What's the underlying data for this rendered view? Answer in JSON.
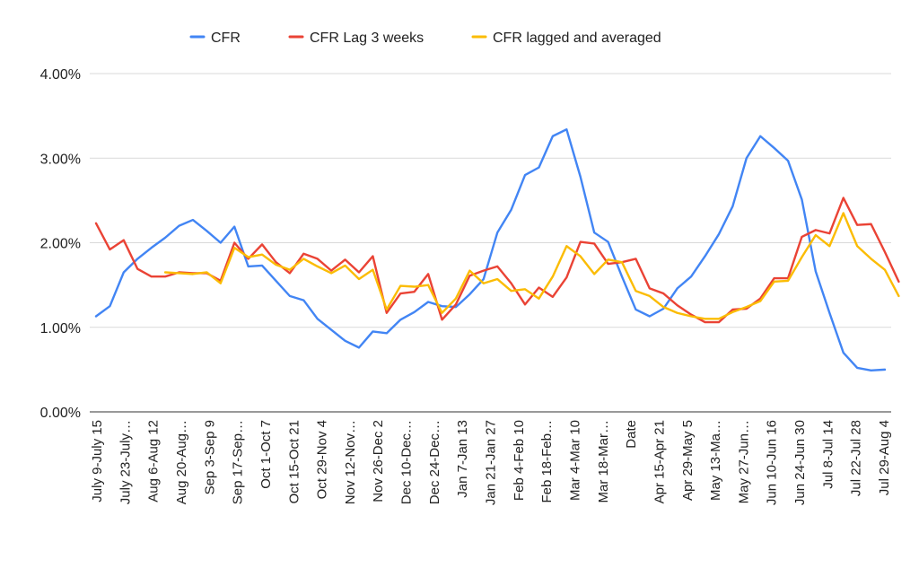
{
  "chart_data": {
    "type": "line",
    "legend_position": "top",
    "grid": true,
    "ylim": [
      0,
      0.04
    ],
    "y_ticks": [
      {
        "value": 0,
        "label": "0.00%"
      },
      {
        "value": 0.01,
        "label": "1.00%"
      },
      {
        "value": 0.02,
        "label": "2.00%"
      },
      {
        "value": 0.03,
        "label": "3.00%"
      },
      {
        "value": 0.04,
        "label": "4.00%"
      }
    ],
    "x_tick_labels": [
      "July 9-July 15",
      "July 23-July…",
      "Aug 6-Aug 12",
      "Aug 20-Aug…",
      "Sep 3-Sep 9",
      "Sep 17-Sep…",
      "Oct 1-Oct 7",
      "Oct 15-Oct 21",
      "Oct 29-Nov 4",
      "Nov 12-Nov…",
      "Nov 26-Dec 2",
      "Dec 10-Dec…",
      "Dec 24-Dec…",
      "Jan 7-Jan 13",
      "Jan 21-Jan 27",
      "Feb 4-Feb 10",
      "Feb 18-Feb…",
      "Mar 4-Mar 10",
      "Mar 18-Mar…",
      "Date",
      "Apr 15-Apr 21",
      "Apr 29-May 5",
      "May 13-Ma…",
      "May 27-Jun…",
      "Jun 10-Jun 16",
      "Jun 24-Jun 30",
      "Jul 8-Jul 14",
      "Jul 22-Jul 28",
      "Jul 29-Aug 4"
    ],
    "series": [
      {
        "name": "CFR",
        "color": "#4285f4",
        "values": [
          0.0113,
          0.0125,
          0.0165,
          0.0181,
          0.0194,
          0.0206,
          0.022,
          0.0227,
          0.0214,
          0.02,
          0.0219,
          0.0172,
          0.0173,
          0.0155,
          0.0137,
          0.0132,
          0.011,
          0.0097,
          0.0084,
          0.0076,
          0.0095,
          0.0093,
          0.0109,
          0.0118,
          0.013,
          0.0125,
          0.0124,
          0.0139,
          0.0157,
          0.0212,
          0.0239,
          0.028,
          0.0289,
          0.0326,
          0.0334,
          0.0278,
          0.0212,
          0.0201,
          0.016,
          0.0121,
          0.0113,
          0.0122,
          0.0146,
          0.016,
          0.0184,
          0.021,
          0.0243,
          0.03,
          0.0326,
          0.0312,
          0.0297,
          0.0251,
          0.0166,
          0.0117,
          0.007,
          0.0052,
          0.0049,
          0.005
        ]
      },
      {
        "name": "CFR Lag 3 weeks",
        "color": "#ea4335",
        "values": [
          0.0223,
          0.0192,
          0.0203,
          0.0169,
          0.016,
          0.016,
          0.0165,
          0.0164,
          0.0164,
          0.0155,
          0.02,
          0.0181,
          0.0198,
          0.0177,
          0.0164,
          0.0187,
          0.0181,
          0.0167,
          0.018,
          0.0165,
          0.0184,
          0.0117,
          0.014,
          0.0142,
          0.0163,
          0.0109,
          0.0127,
          0.0161,
          0.0167,
          0.0172,
          0.0152,
          0.0127,
          0.0147,
          0.0136,
          0.0159,
          0.0201,
          0.0199,
          0.0175,
          0.0177,
          0.0181,
          0.0146,
          0.014,
          0.0126,
          0.0115,
          0.0106,
          0.0106,
          0.0121,
          0.0122,
          0.0134,
          0.0158,
          0.0158,
          0.0207,
          0.0215,
          0.0211,
          0.0253,
          0.0221,
          0.0222,
          0.0189,
          0.0154
        ]
      },
      {
        "name": "CFR lagged and averaged",
        "color": "#fbbc04",
        "values": [
          null,
          null,
          null,
          null,
          null,
          0.0165,
          0.0164,
          0.0163,
          0.0165,
          0.0152,
          0.0194,
          0.0183,
          0.0186,
          0.0174,
          0.0168,
          0.0181,
          0.0172,
          0.0164,
          0.0173,
          0.0157,
          0.0168,
          0.0121,
          0.0149,
          0.0148,
          0.015,
          0.0117,
          0.0134,
          0.0167,
          0.0152,
          0.0157,
          0.0143,
          0.0145,
          0.0134,
          0.016,
          0.0196,
          0.0184,
          0.0163,
          0.018,
          0.0177,
          0.0143,
          0.0137,
          0.0124,
          0.0117,
          0.0113,
          0.011,
          0.011,
          0.0118,
          0.0124,
          0.0131,
          0.0154,
          0.0155,
          0.0183,
          0.0209,
          0.0196,
          0.0235,
          0.0196,
          0.0181,
          0.0168,
          0.0137
        ]
      }
    ]
  }
}
